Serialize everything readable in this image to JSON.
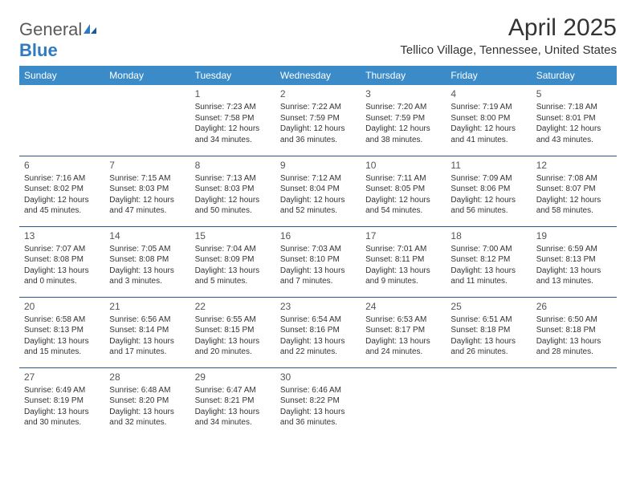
{
  "logo": {
    "text_general": "General",
    "text_blue": "Blue"
  },
  "title": "April 2025",
  "location": "Tellico Village, Tennessee, United States",
  "colors": {
    "header_bg": "#3b8bc8",
    "header_text": "#ffffff",
    "row_border": "#2a5a8a",
    "body_text": "#333333",
    "logo_gray": "#5a5a5a",
    "logo_blue": "#2f7ac0"
  },
  "typography": {
    "title_fontsize": 30,
    "location_fontsize": 15,
    "dayheader_fontsize": 12,
    "cell_fontsize": 10,
    "daynum_fontsize": 12
  },
  "day_headers": [
    "Sunday",
    "Monday",
    "Tuesday",
    "Wednesday",
    "Thursday",
    "Friday",
    "Saturday"
  ],
  "weeks": [
    [
      null,
      null,
      {
        "n": "1",
        "sr": "Sunrise: 7:23 AM",
        "ss": "Sunset: 7:58 PM",
        "dl": "Daylight: 12 hours and 34 minutes."
      },
      {
        "n": "2",
        "sr": "Sunrise: 7:22 AM",
        "ss": "Sunset: 7:59 PM",
        "dl": "Daylight: 12 hours and 36 minutes."
      },
      {
        "n": "3",
        "sr": "Sunrise: 7:20 AM",
        "ss": "Sunset: 7:59 PM",
        "dl": "Daylight: 12 hours and 38 minutes."
      },
      {
        "n": "4",
        "sr": "Sunrise: 7:19 AM",
        "ss": "Sunset: 8:00 PM",
        "dl": "Daylight: 12 hours and 41 minutes."
      },
      {
        "n": "5",
        "sr": "Sunrise: 7:18 AM",
        "ss": "Sunset: 8:01 PM",
        "dl": "Daylight: 12 hours and 43 minutes."
      }
    ],
    [
      {
        "n": "6",
        "sr": "Sunrise: 7:16 AM",
        "ss": "Sunset: 8:02 PM",
        "dl": "Daylight: 12 hours and 45 minutes."
      },
      {
        "n": "7",
        "sr": "Sunrise: 7:15 AM",
        "ss": "Sunset: 8:03 PM",
        "dl": "Daylight: 12 hours and 47 minutes."
      },
      {
        "n": "8",
        "sr": "Sunrise: 7:13 AM",
        "ss": "Sunset: 8:03 PM",
        "dl": "Daylight: 12 hours and 50 minutes."
      },
      {
        "n": "9",
        "sr": "Sunrise: 7:12 AM",
        "ss": "Sunset: 8:04 PM",
        "dl": "Daylight: 12 hours and 52 minutes."
      },
      {
        "n": "10",
        "sr": "Sunrise: 7:11 AM",
        "ss": "Sunset: 8:05 PM",
        "dl": "Daylight: 12 hours and 54 minutes."
      },
      {
        "n": "11",
        "sr": "Sunrise: 7:09 AM",
        "ss": "Sunset: 8:06 PM",
        "dl": "Daylight: 12 hours and 56 minutes."
      },
      {
        "n": "12",
        "sr": "Sunrise: 7:08 AM",
        "ss": "Sunset: 8:07 PM",
        "dl": "Daylight: 12 hours and 58 minutes."
      }
    ],
    [
      {
        "n": "13",
        "sr": "Sunrise: 7:07 AM",
        "ss": "Sunset: 8:08 PM",
        "dl": "Daylight: 13 hours and 0 minutes."
      },
      {
        "n": "14",
        "sr": "Sunrise: 7:05 AM",
        "ss": "Sunset: 8:08 PM",
        "dl": "Daylight: 13 hours and 3 minutes."
      },
      {
        "n": "15",
        "sr": "Sunrise: 7:04 AM",
        "ss": "Sunset: 8:09 PM",
        "dl": "Daylight: 13 hours and 5 minutes."
      },
      {
        "n": "16",
        "sr": "Sunrise: 7:03 AM",
        "ss": "Sunset: 8:10 PM",
        "dl": "Daylight: 13 hours and 7 minutes."
      },
      {
        "n": "17",
        "sr": "Sunrise: 7:01 AM",
        "ss": "Sunset: 8:11 PM",
        "dl": "Daylight: 13 hours and 9 minutes."
      },
      {
        "n": "18",
        "sr": "Sunrise: 7:00 AM",
        "ss": "Sunset: 8:12 PM",
        "dl": "Daylight: 13 hours and 11 minutes."
      },
      {
        "n": "19",
        "sr": "Sunrise: 6:59 AM",
        "ss": "Sunset: 8:13 PM",
        "dl": "Daylight: 13 hours and 13 minutes."
      }
    ],
    [
      {
        "n": "20",
        "sr": "Sunrise: 6:58 AM",
        "ss": "Sunset: 8:13 PM",
        "dl": "Daylight: 13 hours and 15 minutes."
      },
      {
        "n": "21",
        "sr": "Sunrise: 6:56 AM",
        "ss": "Sunset: 8:14 PM",
        "dl": "Daylight: 13 hours and 17 minutes."
      },
      {
        "n": "22",
        "sr": "Sunrise: 6:55 AM",
        "ss": "Sunset: 8:15 PM",
        "dl": "Daylight: 13 hours and 20 minutes."
      },
      {
        "n": "23",
        "sr": "Sunrise: 6:54 AM",
        "ss": "Sunset: 8:16 PM",
        "dl": "Daylight: 13 hours and 22 minutes."
      },
      {
        "n": "24",
        "sr": "Sunrise: 6:53 AM",
        "ss": "Sunset: 8:17 PM",
        "dl": "Daylight: 13 hours and 24 minutes."
      },
      {
        "n": "25",
        "sr": "Sunrise: 6:51 AM",
        "ss": "Sunset: 8:18 PM",
        "dl": "Daylight: 13 hours and 26 minutes."
      },
      {
        "n": "26",
        "sr": "Sunrise: 6:50 AM",
        "ss": "Sunset: 8:18 PM",
        "dl": "Daylight: 13 hours and 28 minutes."
      }
    ],
    [
      {
        "n": "27",
        "sr": "Sunrise: 6:49 AM",
        "ss": "Sunset: 8:19 PM",
        "dl": "Daylight: 13 hours and 30 minutes."
      },
      {
        "n": "28",
        "sr": "Sunrise: 6:48 AM",
        "ss": "Sunset: 8:20 PM",
        "dl": "Daylight: 13 hours and 32 minutes."
      },
      {
        "n": "29",
        "sr": "Sunrise: 6:47 AM",
        "ss": "Sunset: 8:21 PM",
        "dl": "Daylight: 13 hours and 34 minutes."
      },
      {
        "n": "30",
        "sr": "Sunrise: 6:46 AM",
        "ss": "Sunset: 8:22 PM",
        "dl": "Daylight: 13 hours and 36 minutes."
      },
      null,
      null,
      null
    ]
  ]
}
